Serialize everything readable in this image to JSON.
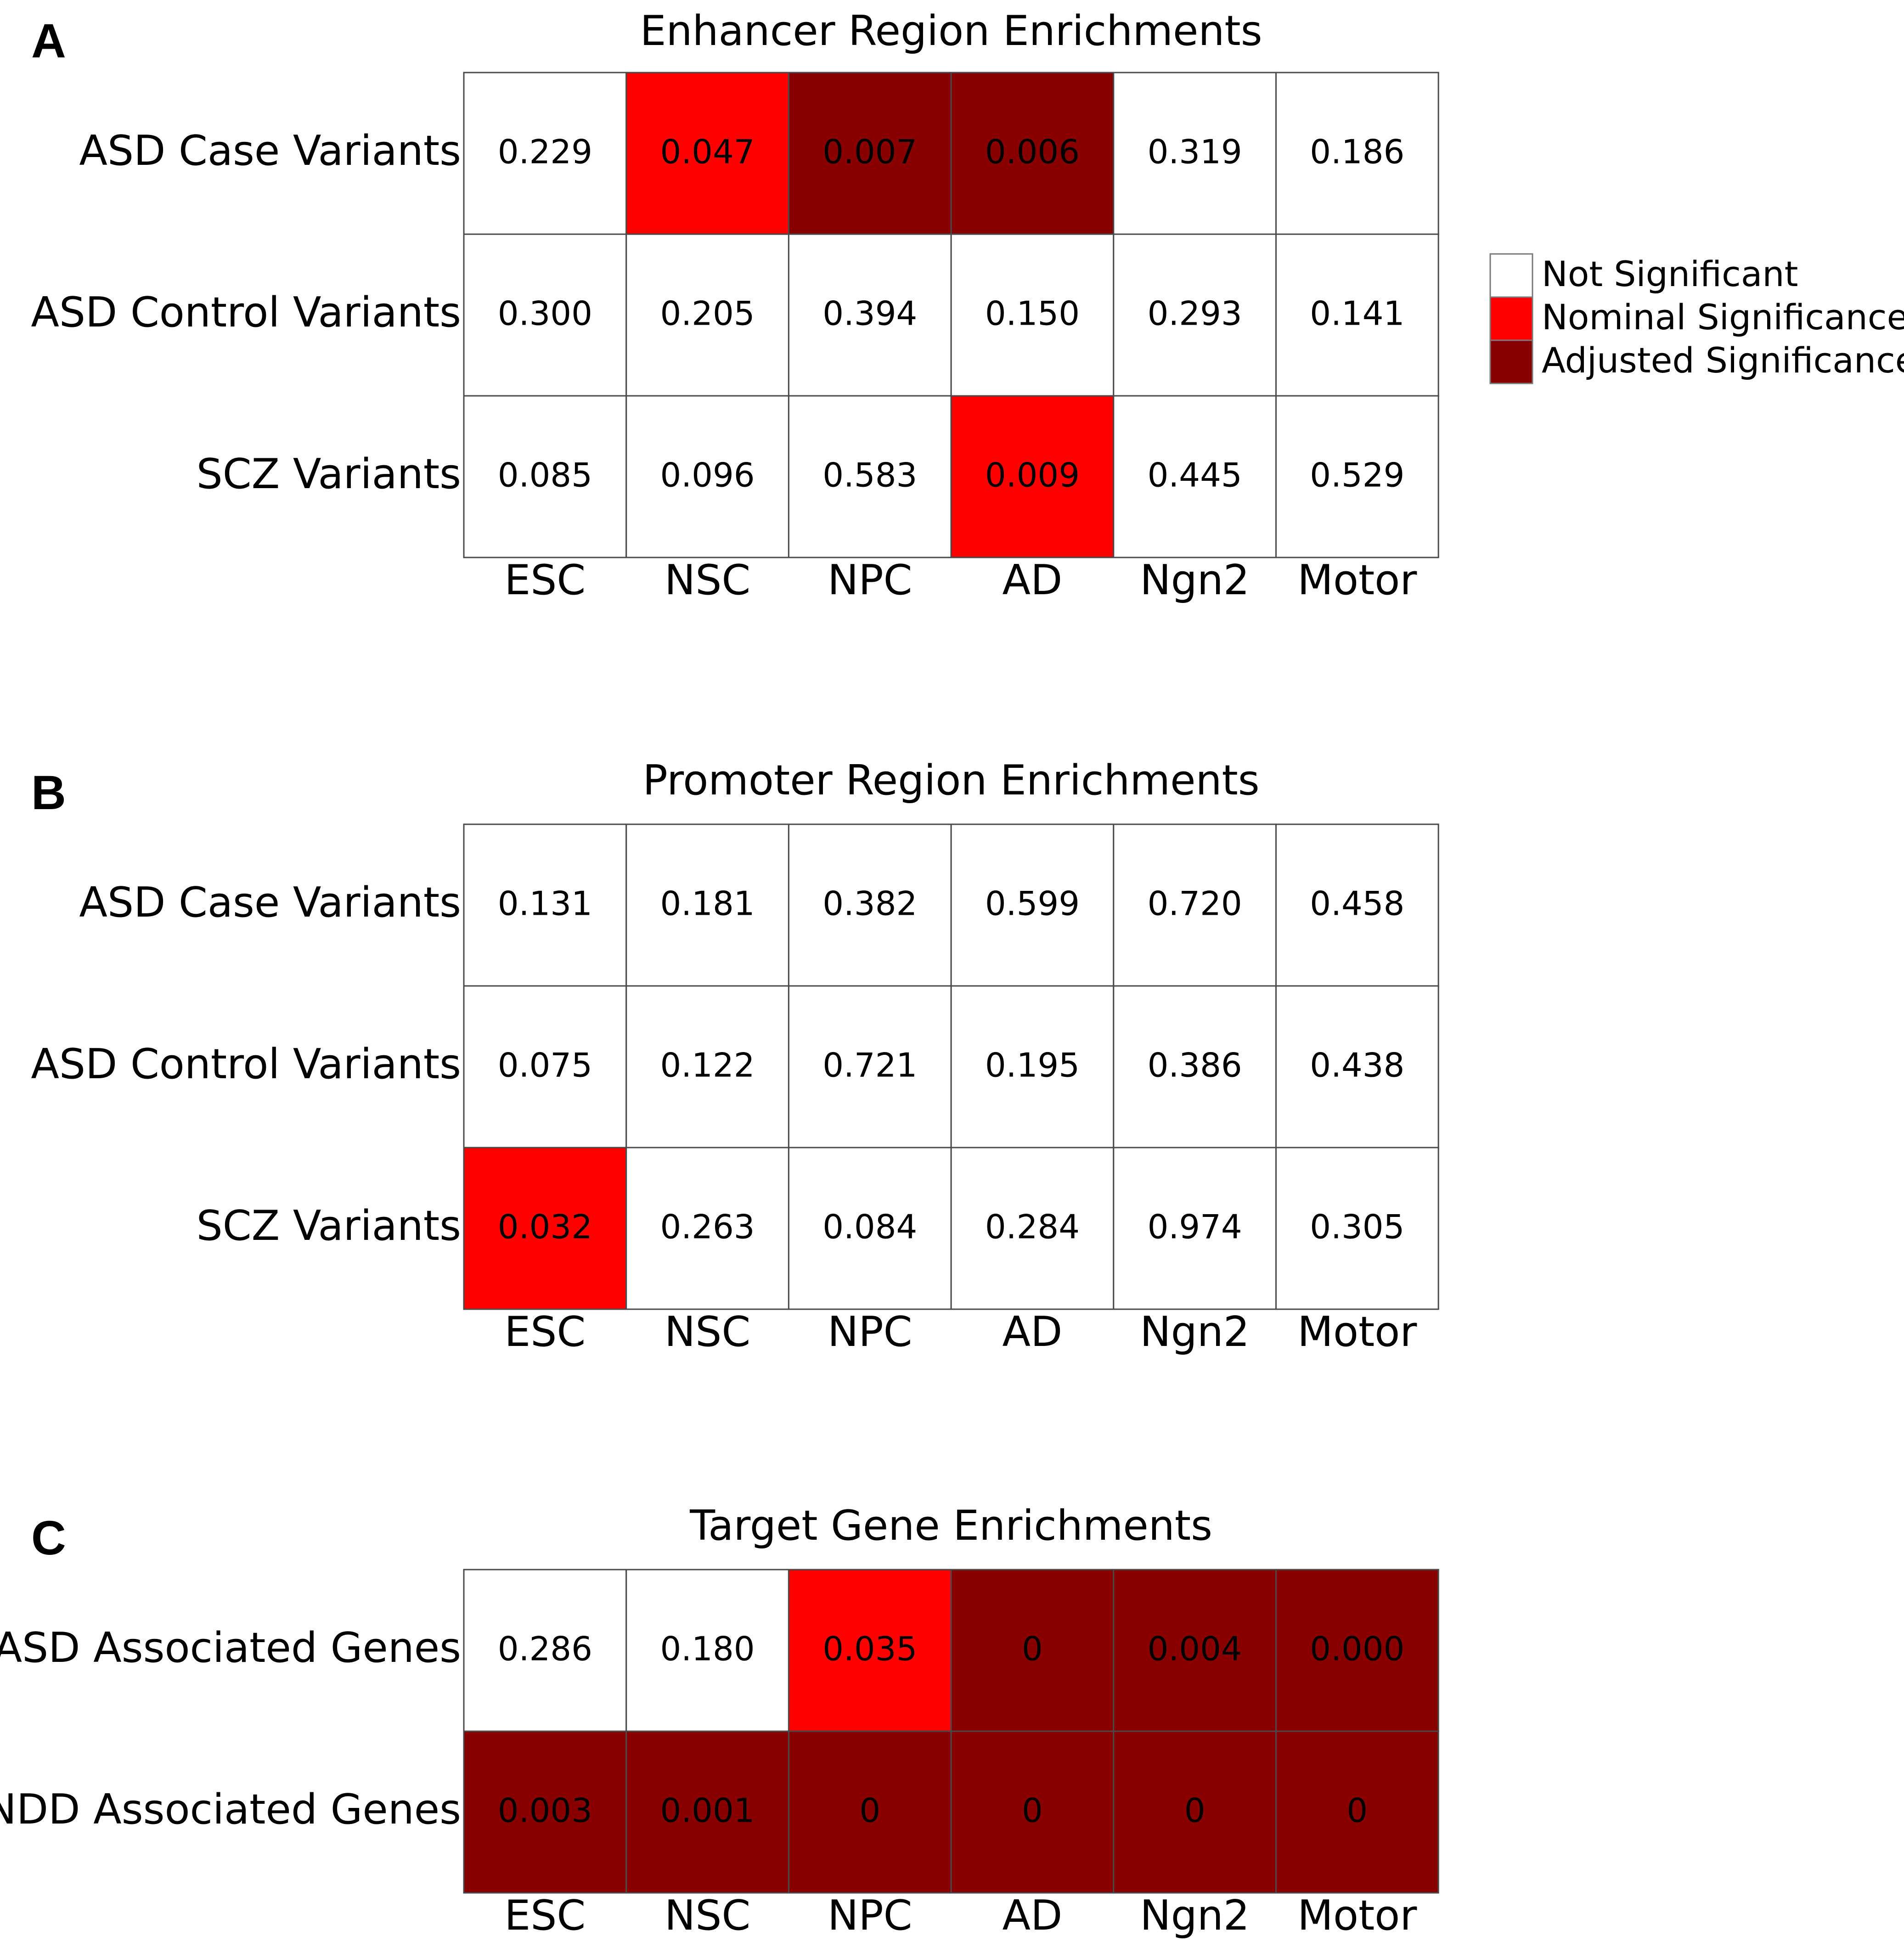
{
  "colors": {
    "not_significant": "#ffffff",
    "nominal": "#ff0000",
    "adjusted": "#880000"
  },
  "legend": [
    {
      "label": "Not Significant",
      "level": "not_significant"
    },
    {
      "label": "Nominal Significance",
      "level": "nominal"
    },
    {
      "label": "Adjusted Significance",
      "level": "adjusted"
    }
  ],
  "chart_data": [
    {
      "type": "heatmap",
      "panel": "A",
      "title": "Enhancer Region Enrichments",
      "columns": [
        "ESC",
        "NSC",
        "NPC",
        "AD",
        "Ngn2",
        "Motor"
      ],
      "rows": [
        "ASD Case Variants",
        "ASD Control Variants",
        "SCZ Variants"
      ],
      "values": [
        [
          "0.229",
          "0.047",
          "0.007",
          "0.006",
          "0.319",
          "0.186"
        ],
        [
          "0.300",
          "0.205",
          "0.394",
          "0.150",
          "0.293",
          "0.141"
        ],
        [
          "0.085",
          "0.096",
          "0.583",
          "0.009",
          "0.445",
          "0.529"
        ]
      ],
      "significance": [
        [
          "not_significant",
          "nominal",
          "adjusted",
          "adjusted",
          "not_significant",
          "not_significant"
        ],
        [
          "not_significant",
          "not_significant",
          "not_significant",
          "not_significant",
          "not_significant",
          "not_significant"
        ],
        [
          "not_significant",
          "not_significant",
          "not_significant",
          "nominal",
          "not_significant",
          "not_significant"
        ]
      ]
    },
    {
      "type": "heatmap",
      "panel": "B",
      "title": "Promoter Region Enrichments",
      "columns": [
        "ESC",
        "NSC",
        "NPC",
        "AD",
        "Ngn2",
        "Motor"
      ],
      "rows": [
        "ASD Case Variants",
        "ASD Control Variants",
        "SCZ Variants"
      ],
      "values": [
        [
          "0.131",
          "0.181",
          "0.382",
          "0.599",
          "0.720",
          "0.458"
        ],
        [
          "0.075",
          "0.122",
          "0.721",
          "0.195",
          "0.386",
          "0.438"
        ],
        [
          "0.032",
          "0.263",
          "0.084",
          "0.284",
          "0.974",
          "0.305"
        ]
      ],
      "significance": [
        [
          "not_significant",
          "not_significant",
          "not_significant",
          "not_significant",
          "not_significant",
          "not_significant"
        ],
        [
          "not_significant",
          "not_significant",
          "not_significant",
          "not_significant",
          "not_significant",
          "not_significant"
        ],
        [
          "nominal",
          "not_significant",
          "not_significant",
          "not_significant",
          "not_significant",
          "not_significant"
        ]
      ]
    },
    {
      "type": "heatmap",
      "panel": "C",
      "title": "Target Gene Enrichments",
      "columns": [
        "ESC",
        "NSC",
        "NPC",
        "AD",
        "Ngn2",
        "Motor"
      ],
      "rows": [
        "ASD Associated Genes",
        "NDD Associated Genes"
      ],
      "values": [
        [
          "0.286",
          "0.180",
          "0.035",
          "0",
          "0.004",
          "0.000"
        ],
        [
          "0.003",
          "0.001",
          "0",
          "0",
          "0",
          "0"
        ]
      ],
      "significance": [
        [
          "not_significant",
          "not_significant",
          "nominal",
          "adjusted",
          "adjusted",
          "adjusted"
        ],
        [
          "adjusted",
          "adjusted",
          "adjusted",
          "adjusted",
          "adjusted",
          "adjusted"
        ]
      ]
    }
  ]
}
